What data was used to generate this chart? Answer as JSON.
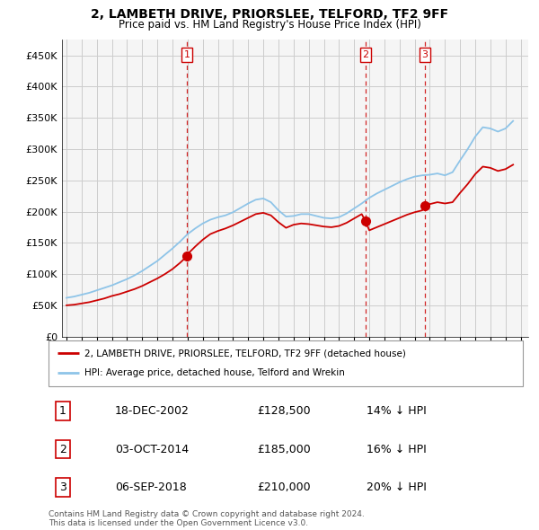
{
  "title": "2, LAMBETH DRIVE, PRIORSLEE, TELFORD, TF2 9FF",
  "subtitle": "Price paid vs. HM Land Registry's House Price Index (HPI)",
  "ytick_values": [
    0,
    50000,
    100000,
    150000,
    200000,
    250000,
    300000,
    350000,
    400000,
    450000
  ],
  "ylim": [
    0,
    475000
  ],
  "xlim_start": 1994.7,
  "xlim_end": 2025.5,
  "hpi_color": "#8ec4e8",
  "price_color": "#cc0000",
  "vline_color": "#cc0000",
  "grid_color": "#cccccc",
  "background_color": "#f5f5f5",
  "sale_dates": [
    2002.96,
    2014.75,
    2018.68
  ],
  "sale_prices": [
    128500,
    185000,
    210000
  ],
  "sale_labels": [
    "1",
    "2",
    "3"
  ],
  "legend_label_price": "2, LAMBETH DRIVE, PRIORSLEE, TELFORD, TF2 9FF (detached house)",
  "legend_label_hpi": "HPI: Average price, detached house, Telford and Wrekin",
  "table_rows": [
    [
      "1",
      "18-DEC-2002",
      "£128,500",
      "14% ↓ HPI"
    ],
    [
      "2",
      "03-OCT-2014",
      "£185,000",
      "16% ↓ HPI"
    ],
    [
      "3",
      "06-SEP-2018",
      "£210,000",
      "20% ↓ HPI"
    ]
  ],
  "footnote": "Contains HM Land Registry data © Crown copyright and database right 2024.\nThis data is licensed under the Open Government Licence v3.0.",
  "hpi_x": [
    1995.0,
    1995.5,
    1996.0,
    1996.5,
    1997.0,
    1997.5,
    1998.0,
    1998.5,
    1999.0,
    1999.5,
    2000.0,
    2000.5,
    2001.0,
    2001.5,
    2002.0,
    2002.5,
    2003.0,
    2003.5,
    2004.0,
    2004.5,
    2005.0,
    2005.5,
    2006.0,
    2006.5,
    2007.0,
    2007.5,
    2008.0,
    2008.5,
    2009.0,
    2009.5,
    2010.0,
    2010.5,
    2011.0,
    2011.5,
    2012.0,
    2012.5,
    2013.0,
    2013.5,
    2014.0,
    2014.5,
    2015.0,
    2015.5,
    2016.0,
    2016.5,
    2017.0,
    2017.5,
    2018.0,
    2018.5,
    2019.0,
    2019.5,
    2020.0,
    2020.5,
    2021.0,
    2021.5,
    2022.0,
    2022.5,
    2023.0,
    2023.5,
    2024.0,
    2024.5
  ],
  "hpi_y": [
    62000,
    64000,
    67000,
    70000,
    74000,
    78000,
    82000,
    87000,
    92000,
    98000,
    105000,
    113000,
    121000,
    131000,
    141000,
    152000,
    164000,
    173000,
    181000,
    187000,
    191000,
    194000,
    199000,
    206000,
    213000,
    219000,
    221000,
    215000,
    202000,
    192000,
    193000,
    196000,
    196000,
    193000,
    190000,
    189000,
    191000,
    197000,
    205000,
    213000,
    222000,
    229000,
    235000,
    241000,
    247000,
    252000,
    256000,
    258000,
    259000,
    261000,
    258000,
    263000,
    282000,
    300000,
    320000,
    335000,
    333000,
    328000,
    333000,
    345000
  ],
  "price_x": [
    1995.0,
    1995.5,
    1996.0,
    1996.5,
    1997.0,
    1997.5,
    1998.0,
    1998.5,
    1999.0,
    1999.5,
    2000.0,
    2000.5,
    2001.0,
    2001.5,
    2002.0,
    2002.5,
    2002.96,
    2003.0,
    2003.5,
    2004.0,
    2004.5,
    2005.0,
    2005.5,
    2006.0,
    2006.5,
    2007.0,
    2007.5,
    2008.0,
    2008.5,
    2009.0,
    2009.5,
    2010.0,
    2010.5,
    2011.0,
    2011.5,
    2012.0,
    2012.5,
    2013.0,
    2013.5,
    2014.0,
    2014.5,
    2014.75,
    2015.0,
    2015.5,
    2016.0,
    2016.5,
    2017.0,
    2017.5,
    2018.0,
    2018.5,
    2018.68,
    2019.0,
    2019.5,
    2020.0,
    2020.5,
    2021.0,
    2021.5,
    2022.0,
    2022.5,
    2023.0,
    2023.5,
    2024.0,
    2024.5
  ],
  "price_y": [
    50000,
    51000,
    53000,
    55000,
    58000,
    61000,
    65000,
    68000,
    72000,
    76000,
    81000,
    87000,
    93000,
    100000,
    108000,
    118000,
    128500,
    132000,
    144000,
    155000,
    164000,
    169000,
    173000,
    178000,
    184000,
    190000,
    196000,
    198000,
    194000,
    183000,
    174000,
    179000,
    181000,
    180000,
    178000,
    176000,
    175000,
    177000,
    182000,
    189000,
    196000,
    185000,
    170000,
    175000,
    180000,
    185000,
    190000,
    195000,
    199000,
    202000,
    210000,
    212000,
    215000,
    213000,
    215000,
    230000,
    244000,
    260000,
    272000,
    270000,
    265000,
    268000,
    275000
  ]
}
